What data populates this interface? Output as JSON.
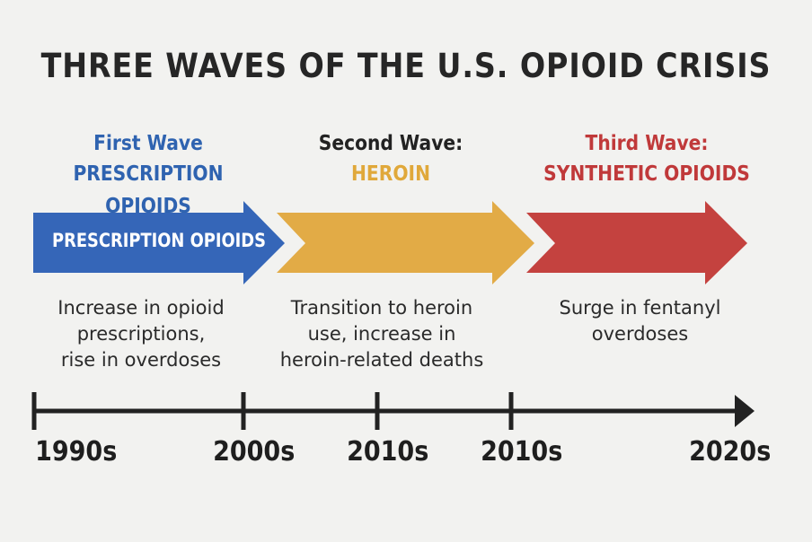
{
  "title": "THREE WAVES OF THE U.S. OPIOID CRISIS",
  "waves": [
    {
      "heading": "First Wave",
      "subheading": "PRESCRIPTION OPIOIDS",
      "arrow_label": "PRESCRIPTION OPIOIDS",
      "description": [
        "Increase in opioid",
        "prescriptions,",
        "rise in overdoses"
      ],
      "heading_color": "#2f63b0",
      "sub_color": "#2f63b0",
      "arrow_color": "#3566b8"
    },
    {
      "heading": "Second Wave:",
      "subheading": "HEROIN",
      "description": [
        "Transition to heroin",
        "use, increase in",
        "heroin-related deaths"
      ],
      "heading_color": "#222222",
      "sub_color": "#e0a83a",
      "arrow_color": "#e2ab46"
    },
    {
      "heading": "Third Wave:",
      "subheading": "SYNTHETIC OPIOIDS",
      "description": [
        "Surge in fentanyl",
        "overdoses"
      ],
      "heading_color": "#c0393a",
      "sub_color": "#c0393a",
      "arrow_color": "#c4423f"
    }
  ],
  "timeline": {
    "labels": [
      "1990s",
      "2000s",
      "2010s",
      "2010s",
      "2020s"
    ]
  }
}
